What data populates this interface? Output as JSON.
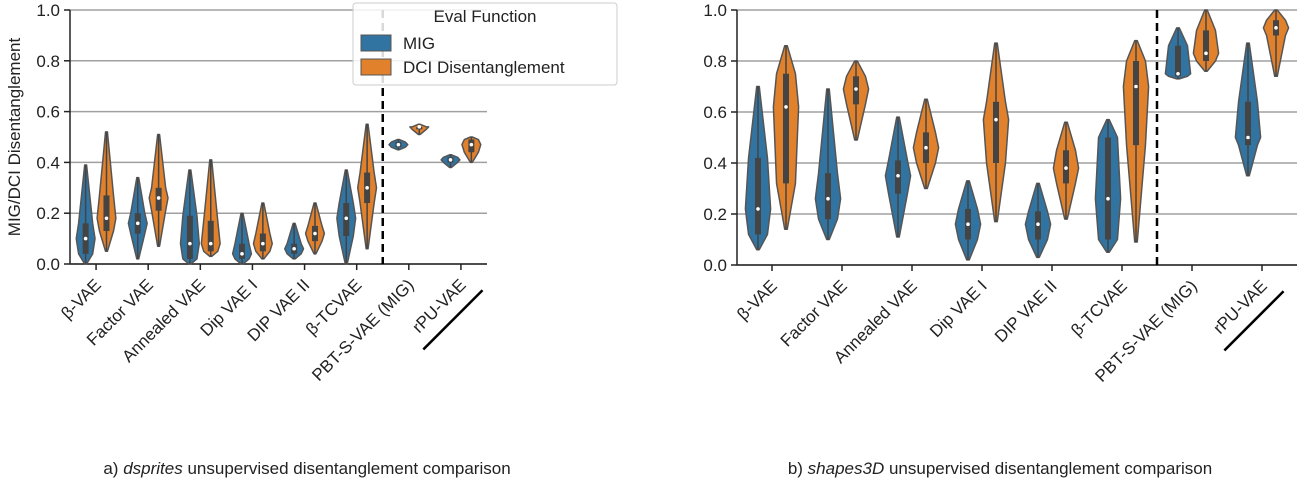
{
  "chart_data": [
    {
      "type": "violin",
      "caption": {
        "prefix": "a)",
        "italic": "dsprites",
        "rest": "unsupervised disentanglement comparison"
      },
      "y_label": "MIG/DCI Disentanglement",
      "legend_title": "Eval Function",
      "legend": "upper right",
      "grid": true,
      "ylim": [
        0,
        1
      ],
      "yticks": [
        {
          "value": 0,
          "label": "0.0"
        },
        0.2,
        0.4,
        0.6,
        0.8,
        {
          "value": 1,
          "label": "1.0"
        }
      ],
      "categories": [
        "β-VAE",
        "Factor VAE",
        "Annealed VAE",
        "Dip VAE I",
        "DIP VAE II",
        "β-TCVAE",
        "PBT-S-VAE (MIG)",
        "rPU-VAE"
      ],
      "divider_after_category": "β-TCVAE",
      "underlined_category": "rPU-VAE",
      "series": [
        {
          "name": "MIG",
          "color": "#3274a1",
          "min": [
            0,
            0.02,
            0,
            0,
            0.02,
            0,
            0.45,
            0.38
          ],
          "q1": [
            0.04,
            0.12,
            0.02,
            0.02,
            0.04,
            0.11,
            0.46,
            0.4
          ],
          "median": [
            0.1,
            0.16,
            0.08,
            0.04,
            0.06,
            0.18,
            0.47,
            0.41
          ],
          "q3": [
            0.16,
            0.2,
            0.19,
            0.08,
            0.08,
            0.24,
            0.48,
            0.42
          ],
          "max": [
            0.39,
            0.34,
            0.37,
            0.2,
            0.16,
            0.37,
            0.49,
            0.43
          ]
        },
        {
          "name": "DCI Disentanglement",
          "color": "#e1812c",
          "min": [
            0.05,
            0.07,
            0.03,
            0.02,
            0.04,
            0.06,
            0.51,
            0.4
          ],
          "q1": [
            0.13,
            0.21,
            0.05,
            0.05,
            0.09,
            0.24,
            0.53,
            0.44
          ],
          "median": [
            0.18,
            0.26,
            0.08,
            0.08,
            0.12,
            0.3,
            0.54,
            0.47
          ],
          "q3": [
            0.27,
            0.3,
            0.17,
            0.12,
            0.15,
            0.36,
            0.54,
            0.49
          ],
          "max": [
            0.52,
            0.51,
            0.41,
            0.24,
            0.24,
            0.55,
            0.55,
            0.5
          ]
        }
      ]
    },
    {
      "type": "violin",
      "caption": {
        "prefix": "b)",
        "italic": "shapes3D",
        "rest": "unsupervised disentanglement comparison"
      },
      "grid": true,
      "ylim": [
        0,
        1
      ],
      "yticks": [
        {
          "value": 0,
          "label": "0.0"
        },
        0.2,
        0.4,
        0.6,
        0.8,
        {
          "value": 1,
          "label": "1.0"
        }
      ],
      "categories": [
        "β-VAE",
        "Factor VAE",
        "Annealed VAE",
        "Dip VAE I",
        "DIP VAE II",
        "β-TCVAE",
        "PBT-S-VAE (MIG)",
        "rPU-VAE"
      ],
      "divider_after_category": "β-TCVAE",
      "underlined_category": "rPU-VAE",
      "series": [
        {
          "color": "#3274a1",
          "min": [
            0.06,
            0.1,
            0.11,
            0.02,
            0.03,
            0.05,
            0.73,
            0.35
          ],
          "q1": [
            0.12,
            0.18,
            0.28,
            0.1,
            0.1,
            0.1,
            0.74,
            0.47
          ],
          "median": [
            0.22,
            0.26,
            0.35,
            0.16,
            0.16,
            0.26,
            0.75,
            0.5
          ],
          "q3": [
            0.42,
            0.36,
            0.41,
            0.22,
            0.21,
            0.5,
            0.86,
            0.64
          ],
          "max": [
            0.7,
            0.69,
            0.58,
            0.33,
            0.32,
            0.57,
            0.93,
            0.87
          ]
        },
        {
          "color": "#e1812c",
          "min": [
            0.14,
            0.49,
            0.3,
            0.17,
            0.18,
            0.09,
            0.76,
            0.74
          ],
          "q1": [
            0.32,
            0.63,
            0.4,
            0.4,
            0.32,
            0.47,
            0.8,
            0.9
          ],
          "median": [
            0.62,
            0.69,
            0.46,
            0.57,
            0.38,
            0.7,
            0.83,
            0.93
          ],
          "q3": [
            0.75,
            0.74,
            0.52,
            0.64,
            0.45,
            0.8,
            0.92,
            0.96
          ],
          "max": [
            0.86,
            0.8,
            0.65,
            0.87,
            0.56,
            0.88,
            1,
            1
          ]
        }
      ]
    }
  ]
}
